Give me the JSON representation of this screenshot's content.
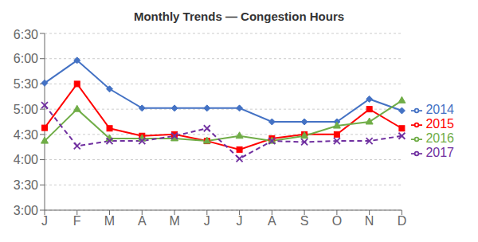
{
  "chart_data": {
    "type": "line",
    "title": "Monthly Trends — Congestion Hours",
    "categories": [
      "J",
      "F",
      "M",
      "A",
      "M",
      "J",
      "J",
      "A",
      "S",
      "O",
      "N",
      "D"
    ],
    "series": [
      {
        "name": "2014",
        "color": "#4472C4",
        "marker": "diamond",
        "line_style": "solid",
        "values": [
          5.517,
          5.967,
          5.4,
          5.02,
          5.02,
          5.02,
          5.02,
          4.75,
          4.75,
          4.75,
          5.2,
          4.97
        ]
      },
      {
        "name": "2015",
        "color": "#FF0000",
        "marker": "square",
        "line_style": "solid",
        "values": [
          4.63,
          5.5,
          4.62,
          4.47,
          4.5,
          4.37,
          4.2,
          4.42,
          4.5,
          4.5,
          5.0,
          4.62
        ]
      },
      {
        "name": "2016",
        "color": "#70AD47",
        "marker": "triangle",
        "line_style": "solid",
        "values": [
          4.37,
          5.0,
          4.42,
          4.42,
          4.42,
          4.37,
          4.47,
          4.37,
          4.47,
          4.67,
          4.75,
          5.17
        ]
      },
      {
        "name": "2017",
        "color": "#7030A0",
        "marker": "x",
        "line_style": "dashed",
        "values": [
          5.08,
          4.27,
          4.37,
          4.37,
          4.47,
          4.62,
          4.02,
          4.37,
          4.35,
          4.37,
          4.37,
          4.47
        ]
      }
    ],
    "ylim": [
      3.0,
      6.5
    ],
    "yticks": [
      {
        "value": 3.0,
        "label": "3:00"
      },
      {
        "value": 3.5,
        "label": "3:30"
      },
      {
        "value": 4.0,
        "label": "4:00"
      },
      {
        "value": 4.5,
        "label": "4:30"
      },
      {
        "value": 5.0,
        "label": "5:00"
      },
      {
        "value": 5.5,
        "label": "5:30"
      },
      {
        "value": 6.0,
        "label": "6:00"
      },
      {
        "value": 6.5,
        "label": "6:30"
      }
    ],
    "grid": true,
    "legend": "right"
  }
}
